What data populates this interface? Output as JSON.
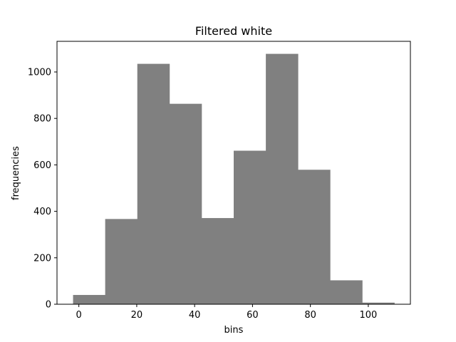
{
  "chart_data": {
    "type": "bar",
    "title": "Filtered white",
    "xlabel": "bins",
    "ylabel": "frequencies",
    "bin_edges": [
      -2,
      9.1,
      20.2,
      31.3,
      42.4,
      53.5,
      64.6,
      75.7,
      86.8,
      97.9,
      109
    ],
    "values": [
      40,
      367,
      1035,
      863,
      371,
      661,
      1078,
      579,
      103,
      7
    ],
    "xlim": [
      -7.55,
      114.55
    ],
    "ylim": [
      0,
      1131.9
    ],
    "xticks": [
      0,
      20,
      40,
      60,
      80,
      100
    ],
    "yticks": [
      0,
      200,
      400,
      600,
      800,
      1000
    ],
    "bar_color": "#808080",
    "grid": false
  }
}
